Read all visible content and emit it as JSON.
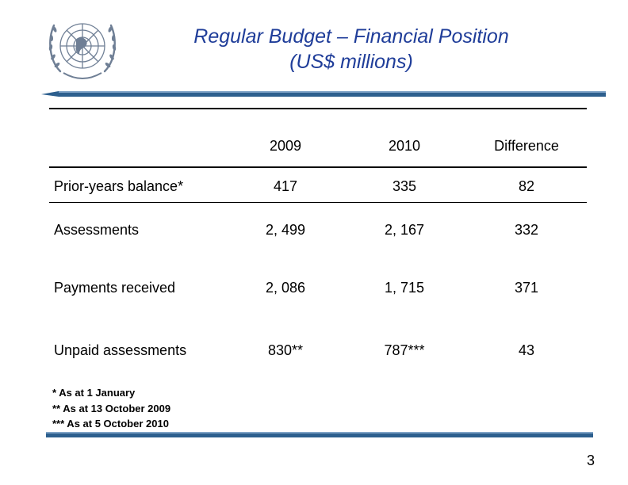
{
  "title": {
    "line1": "Regular Budget – Financial Position",
    "line2": "(US$ millions)"
  },
  "colors": {
    "title": "#1f3d99",
    "accent": "#2d5f8e",
    "logo": "#6f7f95"
  },
  "logo_icon": "un-emblem-icon",
  "table": {
    "columns": [
      "2009",
      "2010",
      "Difference"
    ],
    "rows": [
      {
        "label": "Prior-years balance*",
        "values": [
          "417",
          "335",
          "82"
        ]
      },
      {
        "label": "Assessments",
        "values": [
          "2, 499",
          "2, 167",
          "332"
        ]
      },
      {
        "label": "Payments received",
        "values": [
          "2, 086",
          "1, 715",
          "371"
        ]
      },
      {
        "label": "Unpaid assessments",
        "values": [
          "830**",
          "787***",
          "43"
        ]
      }
    ]
  },
  "footnotes": [
    "* As at 1 January",
    "** As at 13 October 2009",
    "*** As at 5 October 2010"
  ],
  "page_number": "3"
}
